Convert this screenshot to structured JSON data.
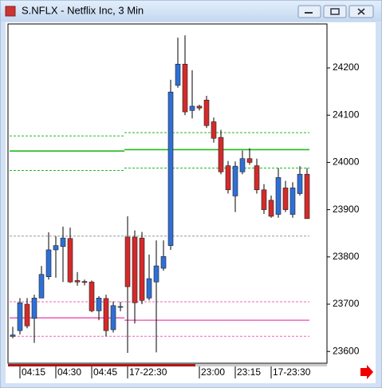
{
  "chart_data": {
    "type": "candlestick",
    "title": "S.NFLX - Netflix Inc, 3 Min",
    "categories": [
      null,
      "04:15",
      null,
      null,
      null,
      null,
      "04:30",
      null,
      null,
      null,
      null,
      "04:45",
      null,
      null,
      null,
      null,
      "17-22:30",
      null,
      null,
      null,
      null,
      null,
      null,
      null,
      null,
      null,
      "23:00",
      null,
      null,
      null,
      null,
      "23:15",
      null,
      null,
      null,
      null,
      "17-23:30",
      null,
      null,
      null,
      null,
      null
    ],
    "open": [
      23632,
      23644,
      23700,
      23670,
      23713,
      23758,
      23815,
      23822,
      23839,
      23750,
      23748,
      23747,
      23686,
      23712,
      23646,
      23695,
      23842,
      23842,
      23840,
      23713,
      23747,
      23776,
      23824,
      24163,
      24208,
      24110,
      24119,
      24132,
      24086,
      24053,
      23993,
      23929,
      23980,
      24008,
      23993,
      23942,
      23920,
      23890,
      23946,
      23890,
      23934,
      23975
    ],
    "high": [
      23652,
      23713,
      23713,
      23720,
      23781,
      23852,
      23844,
      23864,
      23862,
      23768,
      23752,
      23750,
      23717,
      23720,
      23706,
      23705,
      23886,
      23856,
      23853,
      23805,
      23835,
      23835,
      24175,
      24264,
      24269,
      24195,
      24122,
      24141,
      24095,
      24069,
      24003,
      24002,
      24025,
      24030,
      24008,
      23954,
      23930,
      23988,
      23961,
      23958,
      23992,
      23988
    ],
    "low": [
      23628,
      23636,
      23649,
      23618,
      23713,
      23752,
      23756,
      23747,
      23745,
      23739,
      23740,
      23683,
      23666,
      23632,
      23640,
      23685,
      23597,
      23659,
      23700,
      23708,
      23598,
      23771,
      23815,
      24158,
      24100,
      24093,
      24110,
      24073,
      24042,
      23975,
      23934,
      23895,
      23975,
      23995,
      23934,
      23891,
      23883,
      23883,
      23895,
      23883,
      23930,
      23881
    ],
    "close": [
      23635,
      23703,
      23654,
      23713,
      23763,
      23815,
      23824,
      23840,
      23747,
      23747,
      23746,
      23686,
      23713,
      23644,
      23697,
      23695,
      23737,
      23703,
      23708,
      23754,
      23781,
      23801,
      24149,
      24208,
      24107,
      24119,
      24115,
      24078,
      24051,
      23980,
      23942,
      23992,
      24008,
      24000,
      23942,
      23900,
      23886,
      23968,
      23900,
      23946,
      23975,
      23881
    ],
    "up_color": "#2f6fd6",
    "down_color": "#d42a2a",
    "ylim": [
      23575,
      24293
    ],
    "yticks": [
      23600,
      23700,
      23800,
      23900,
      24000,
      24100,
      24200
    ],
    "levels": [
      {
        "color": "#22bb22",
        "dashed": true,
        "values": [
          24056,
          24063
        ]
      },
      {
        "color": "#22bb22",
        "dashed": false,
        "values": [
          24024,
          24027
        ]
      },
      {
        "color": "#22bb22",
        "dashed": true,
        "values": [
          23983,
          23988
        ]
      },
      {
        "color": "#999999",
        "dashed": true,
        "values": [
          23844,
          23844
        ]
      },
      {
        "color": "#ee66bb",
        "dashed": true,
        "values": [
          23705,
          23705
        ]
      },
      {
        "color": "#ee66bb",
        "dashed": false,
        "values": [
          23671,
          23666
        ]
      },
      {
        "color": "#ee66bb",
        "dashed": true,
        "values": [
          23632,
          23632
        ]
      }
    ]
  }
}
